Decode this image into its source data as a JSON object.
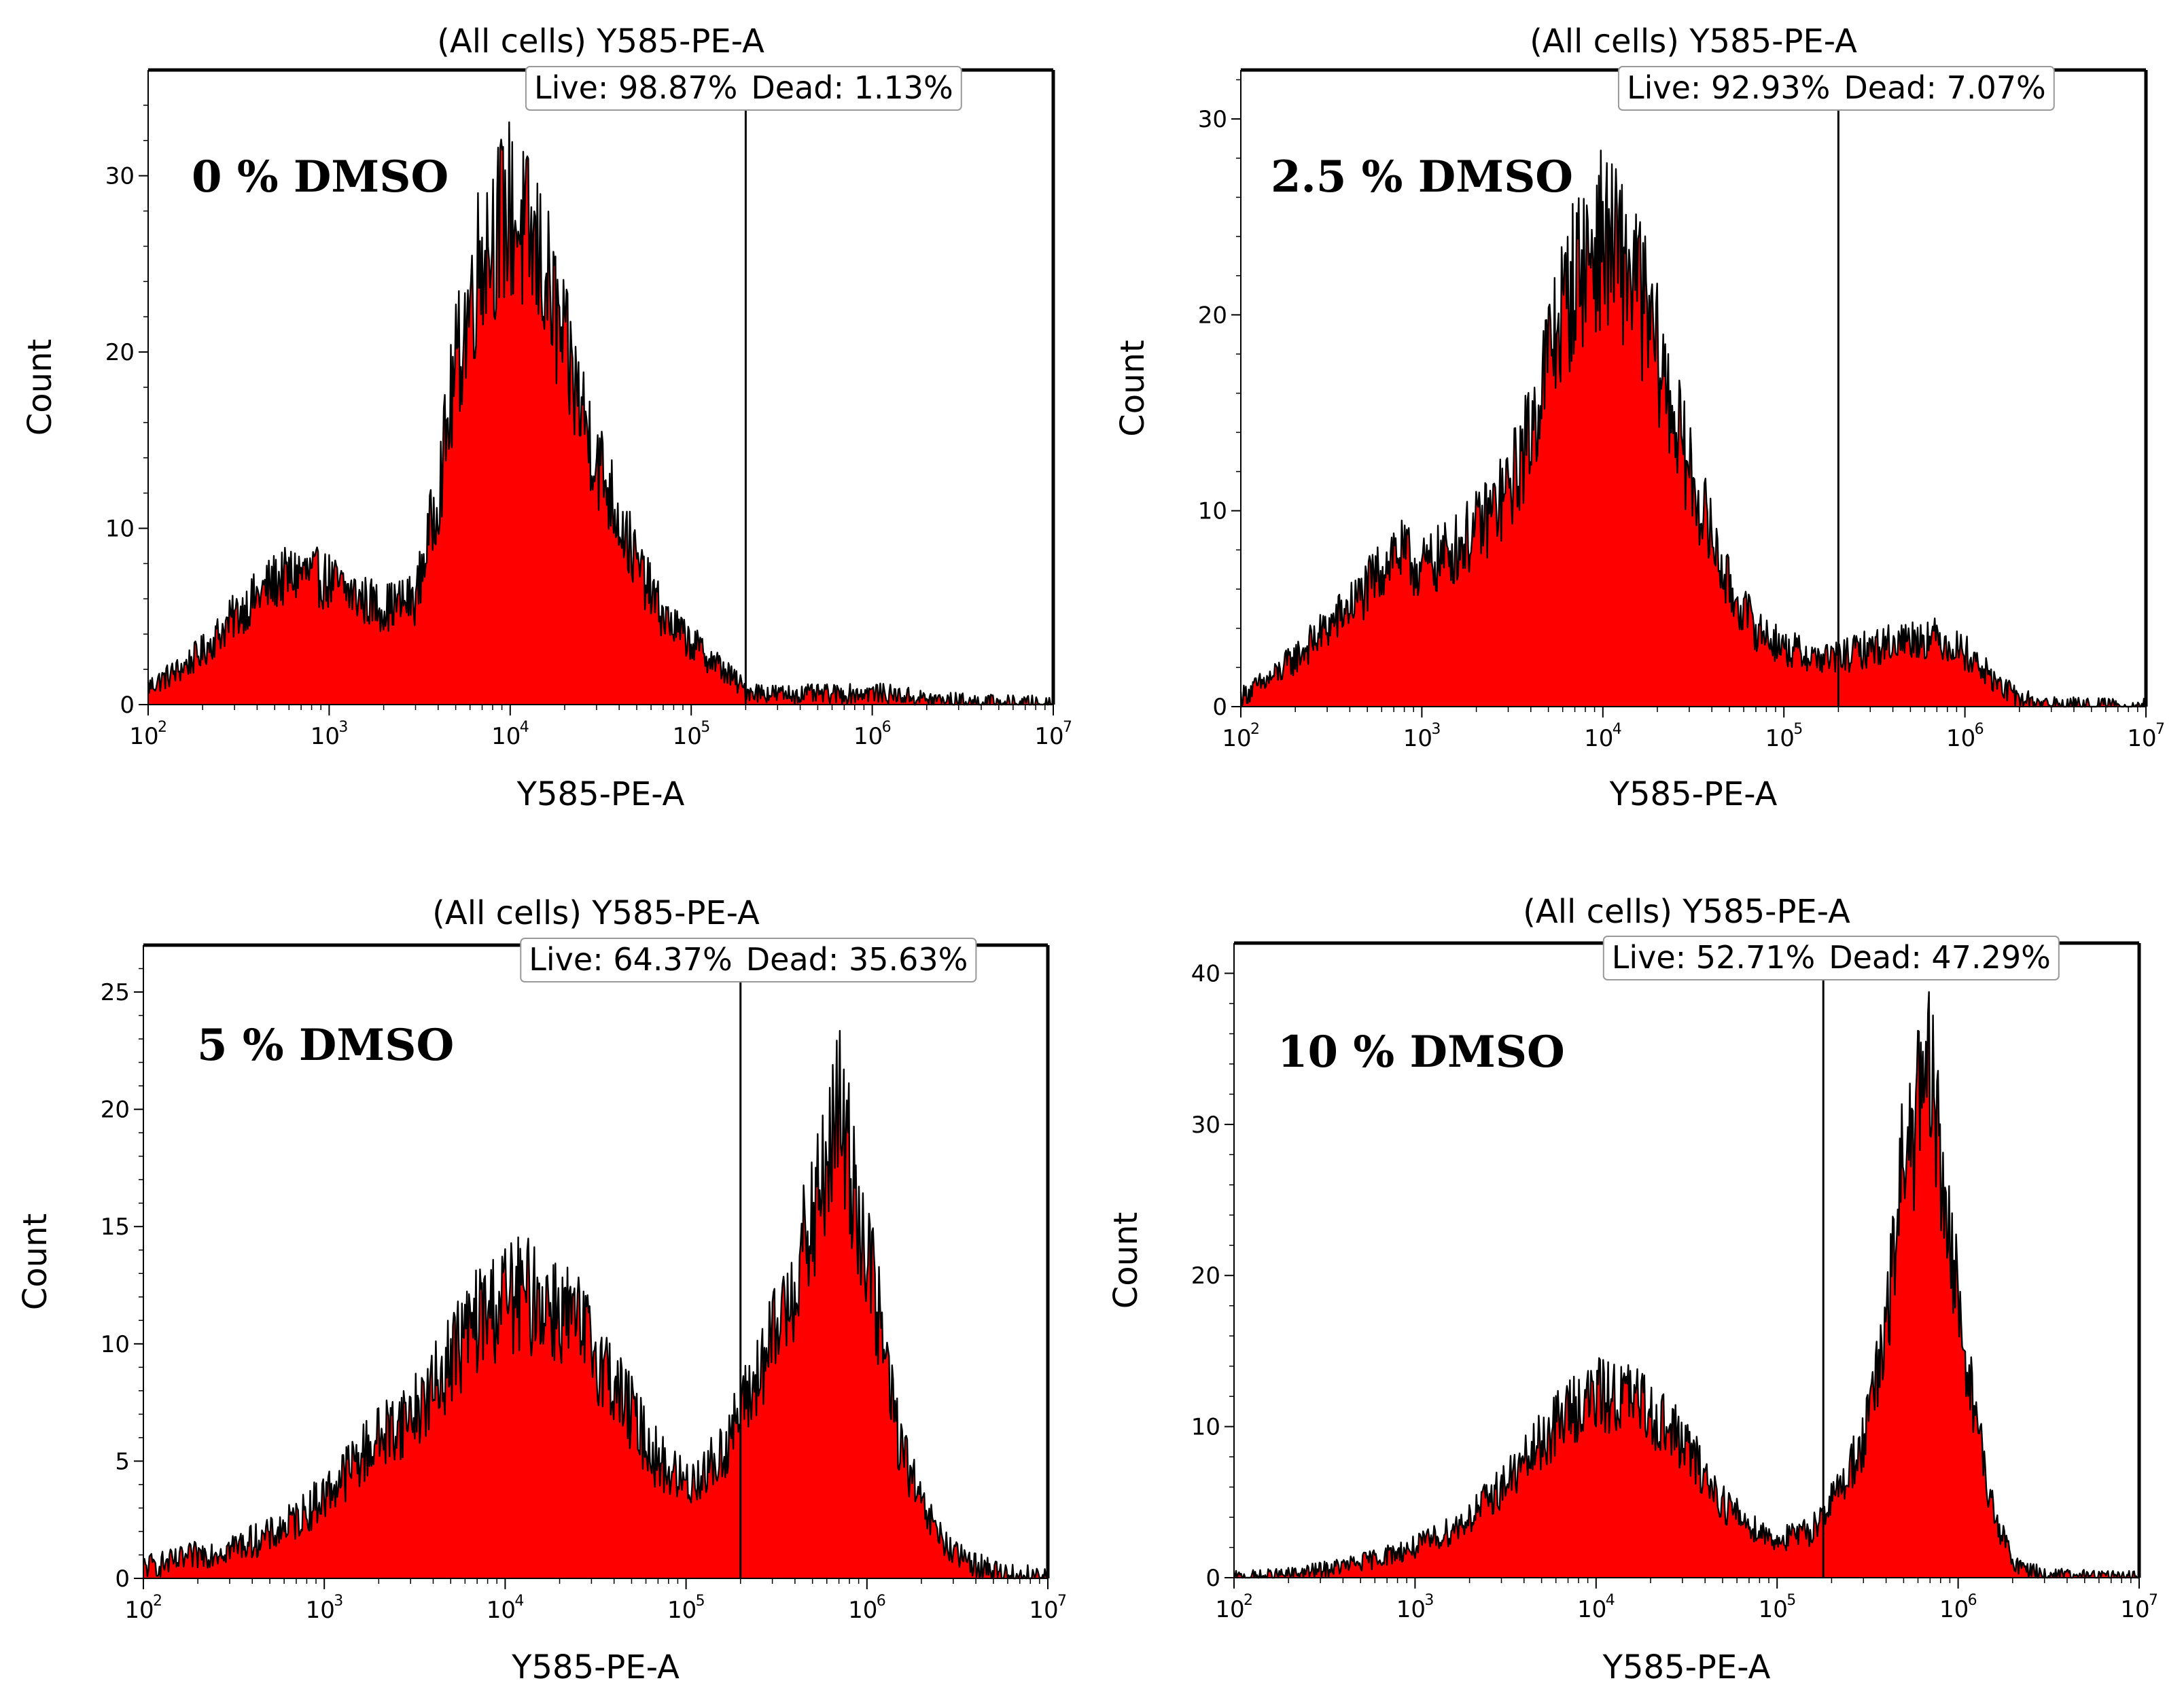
{
  "chart_data": [
    {
      "type": "area",
      "title": "(All cells) Y585-PE-A",
      "xlabel": "Y585-PE-A",
      "ylabel": "Count",
      "xscale": "log",
      "xlim": [
        100,
        10000000
      ],
      "ylim": [
        0,
        36
      ],
      "yticks": [
        "0",
        "10",
        "20",
        "30"
      ],
      "xtick_base": "10",
      "xtick_exponents": [
        "2",
        "3",
        "4",
        "5",
        "6",
        "7"
      ],
      "condition": "0 % DMSO",
      "gate_threshold": 200000,
      "gate_live": "Live: 98.87%",
      "gate_dead": "Dead: 1.13%",
      "fill_color": "#ff0000",
      "outline_color": "#000000",
      "series": [
        {
          "name": "Y585-PE-A histogram",
          "x": [
            100,
            150,
            200,
            300,
            500,
            700,
            1000,
            1500,
            2000,
            3000,
            4000,
            5000,
            7000,
            10000,
            15000,
            20000,
            30000,
            50000,
            70000,
            100000,
            150000,
            200000,
            300000,
            500000,
            700000,
            1000000,
            1500000,
            2000000,
            3000000,
            5000000,
            10000000
          ],
          "values": [
            1,
            2,
            3,
            5,
            7,
            7.5,
            7,
            6,
            5.5,
            6,
            12,
            19,
            26,
            28,
            25,
            20,
            14,
            8,
            5,
            3.5,
            2,
            0.8,
            0.6,
            0.6,
            0.6,
            0.7,
            0.5,
            0.3,
            0.2,
            0.1,
            0.05
          ]
        }
      ]
    },
    {
      "type": "area",
      "title": "(All cells) Y585-PE-A",
      "xlabel": "Y585-PE-A",
      "ylabel": "Count",
      "xscale": "log",
      "xlim": [
        100,
        10000000
      ],
      "ylim": [
        0,
        32.5
      ],
      "yticks": [
        "0",
        "10",
        "20",
        "30"
      ],
      "xtick_base": "10",
      "xtick_exponents": [
        "2",
        "3",
        "4",
        "5",
        "6",
        "7"
      ],
      "condition": "2.5 % DMSO",
      "gate_threshold": 200000,
      "gate_live": "Live: 92.93%",
      "gate_dead": "Dead: 7.07%",
      "fill_color": "#ff0000",
      "outline_color": "#000000",
      "series": [
        {
          "name": "Y585-PE-A histogram",
          "x": [
            100,
            150,
            200,
            300,
            500,
            700,
            1000,
            1500,
            2000,
            3000,
            4000,
            5000,
            7000,
            10000,
            15000,
            20000,
            30000,
            50000,
            70000,
            100000,
            150000,
            200000,
            300000,
            500000,
            700000,
            1000000,
            1500000,
            2000000,
            3000000,
            5000000,
            10000000
          ],
          "values": [
            0.5,
            1.5,
            2.5,
            4,
            6,
            8,
            7,
            8,
            9,
            11,
            14,
            18,
            22,
            24,
            22,
            18,
            12,
            6,
            4,
            3,
            2.5,
            2.5,
            3,
            3.5,
            3.5,
            2.8,
            1.2,
            0.4,
            0.1,
            0,
            0
          ]
        }
      ]
    },
    {
      "type": "area",
      "title": "(All cells) Y585-PE-A",
      "xlabel": "Y585-PE-A",
      "ylabel": "Count",
      "xscale": "log",
      "xlim": [
        100,
        10000000
      ],
      "ylim": [
        0,
        27
      ],
      "yticks": [
        "0",
        "5",
        "10",
        "15",
        "20",
        "25"
      ],
      "xtick_base": "10",
      "xtick_exponents": [
        "2",
        "3",
        "4",
        "5",
        "6",
        "7"
      ],
      "condition": "5 % DMSO",
      "gate_threshold": 200000,
      "gate_live": "Live: 64.37%",
      "gate_dead": "Dead: 35.63%",
      "fill_color": "#ff0000",
      "outline_color": "#000000",
      "series": [
        {
          "name": "Y585-PE-A histogram",
          "x": [
            100,
            150,
            200,
            300,
            500,
            700,
            1000,
            1500,
            2000,
            3000,
            4000,
            5000,
            7000,
            10000,
            15000,
            20000,
            30000,
            50000,
            70000,
            100000,
            150000,
            200000,
            300000,
            500000,
            700000,
            1000000,
            1500000,
            2000000,
            3000000,
            5000000,
            10000000
          ],
          "values": [
            0.5,
            0.7,
            1,
            1.3,
            1.8,
            2.5,
            3.5,
            5,
            6,
            7,
            8,
            9.5,
            11,
            12,
            12,
            11.5,
            10,
            7,
            5,
            4,
            5,
            7,
            10,
            15,
            20,
            14,
            6,
            3,
            1,
            0.3,
            0
          ]
        }
      ]
    },
    {
      "type": "area",
      "title": "(All cells) Y585-PE-A",
      "xlabel": "Y585-PE-A",
      "ylabel": "Count",
      "xscale": "log",
      "xlim": [
        100,
        10000000
      ],
      "ylim": [
        0,
        42
      ],
      "yticks": [
        "0",
        "10",
        "20",
        "30",
        "40"
      ],
      "xtick_base": "10",
      "xtick_exponents": [
        "2",
        "3",
        "4",
        "5",
        "6",
        "7"
      ],
      "condition": "10 % DMSO",
      "gate_threshold": 180000,
      "gate_live": "Live: 52.71%",
      "gate_dead": "Dead: 47.29%",
      "fill_color": "#ff0000",
      "outline_color": "#000000",
      "series": [
        {
          "name": "Y585-PE-A histogram",
          "x": [
            100,
            150,
            200,
            300,
            500,
            700,
            1000,
            1500,
            2000,
            3000,
            4000,
            5000,
            7000,
            10000,
            15000,
            20000,
            30000,
            50000,
            70000,
            100000,
            150000,
            200000,
            300000,
            400000,
            500000,
            700000,
            1000000,
            1500000,
            2000000,
            3000000,
            10000000
          ],
          "values": [
            0,
            0.1,
            0.2,
            0.5,
            1,
            1.5,
            2,
            3,
            4,
            6,
            7.5,
            9,
            11,
            12,
            12,
            11,
            9,
            5,
            3.5,
            2.5,
            3,
            5,
            9,
            16,
            28,
            33,
            18,
            5,
            1,
            0.2,
            0
          ]
        }
      ]
    }
  ]
}
